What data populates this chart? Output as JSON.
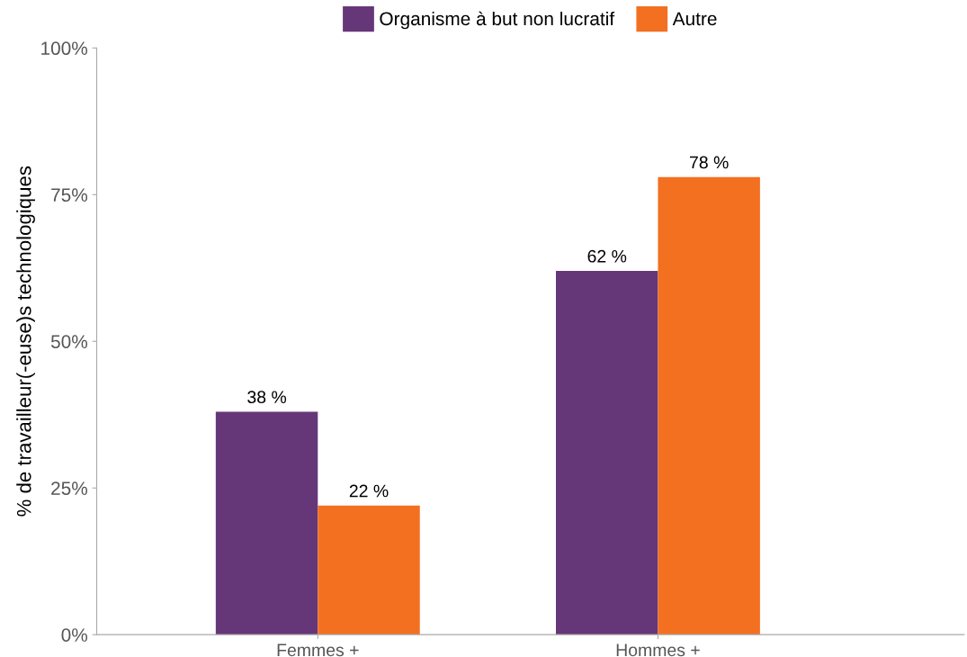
{
  "chart_data": {
    "type": "bar",
    "ylabel": "% de travailleur(-euse)s technologiques",
    "categories": [
      "Femmes +",
      "Hommes +"
    ],
    "series": [
      {
        "name": "Organisme à but non lucratif",
        "color": "#663778",
        "values": [
          38,
          62
        ],
        "value_labels": [
          "38 %",
          "62 %"
        ]
      },
      {
        "name": "Autre",
        "color": "#f37021",
        "values": [
          22,
          78
        ],
        "value_labels": [
          "22 %",
          "78 %"
        ]
      }
    ],
    "ylim": [
      0,
      100
    ],
    "yticks": [
      {
        "value": 0,
        "label": "0%"
      },
      {
        "value": 25,
        "label": "25%"
      },
      {
        "value": 50,
        "label": "50%"
      },
      {
        "value": 75,
        "label": "75%"
      },
      {
        "value": 100,
        "label": "100%"
      }
    ],
    "grid": false,
    "legend": "top"
  }
}
